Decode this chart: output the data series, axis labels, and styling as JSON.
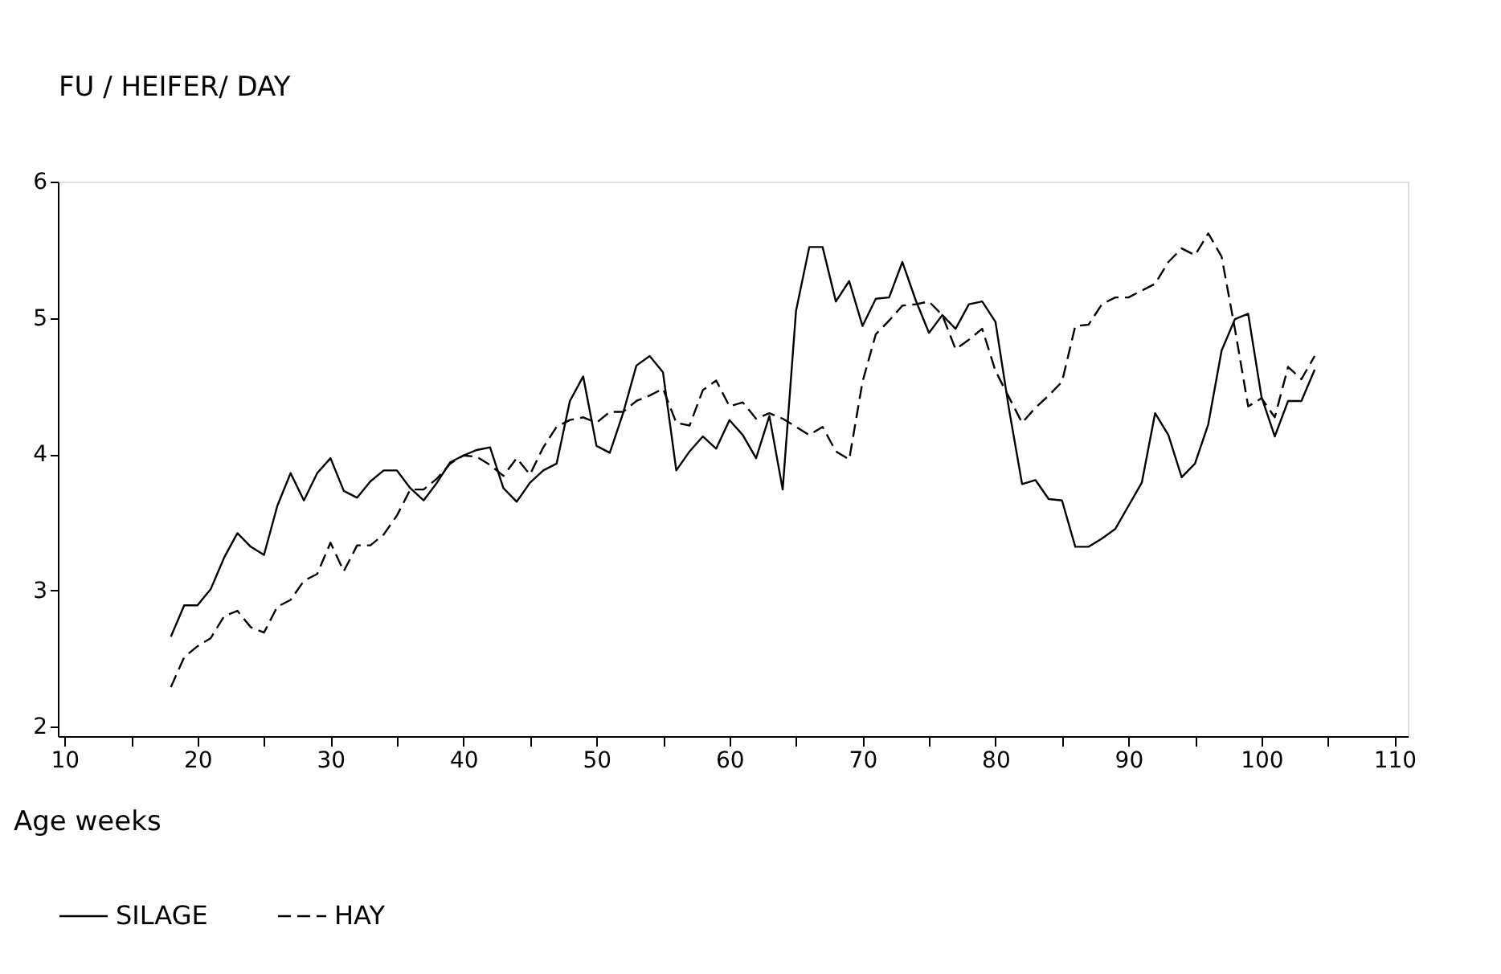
{
  "chart_data": {
    "type": "line",
    "ylabel": "FU / HEIFER/ DAY",
    "xlabel": "Age weeks",
    "x": [
      18,
      19,
      20,
      21,
      22,
      23,
      24,
      25,
      26,
      27,
      28,
      29,
      30,
      31,
      32,
      33,
      34,
      35,
      36,
      37,
      38,
      39,
      40,
      41,
      42,
      43,
      44,
      45,
      46,
      47,
      48,
      49,
      50,
      51,
      52,
      53,
      54,
      55,
      56,
      57,
      58,
      59,
      60,
      61,
      62,
      63,
      64,
      65,
      66,
      67,
      68,
      69,
      70,
      71,
      72,
      73,
      74,
      75,
      76,
      77,
      78,
      79,
      80,
      81,
      82,
      83,
      84,
      85,
      86,
      87,
      88,
      89,
      90,
      91,
      92,
      93,
      94,
      95,
      96,
      97,
      98,
      99,
      100,
      101,
      102,
      103,
      104
    ],
    "series": [
      {
        "name": "SILAGE",
        "color": "#000000",
        "line_style": "solid",
        "values": [
          2.66,
          2.89,
          2.89,
          3.01,
          3.24,
          3.42,
          3.32,
          3.26,
          3.62,
          3.86,
          3.66,
          3.86,
          3.97,
          3.73,
          3.68,
          3.8,
          3.88,
          3.88,
          3.75,
          3.66,
          3.79,
          3.94,
          3.99,
          4.03,
          4.05,
          3.75,
          3.65,
          3.79,
          3.88,
          3.93,
          4.39,
          4.57,
          4.06,
          4.01,
          4.3,
          4.65,
          4.72,
          4.6,
          3.88,
          4.02,
          4.13,
          4.04,
          4.25,
          4.14,
          3.97,
          4.28,
          3.74,
          5.05,
          5.52,
          5.52,
          5.12,
          5.27,
          4.94,
          5.14,
          5.15,
          5.41,
          5.13,
          4.89,
          5.02,
          4.92,
          5.1,
          5.12,
          4.97,
          4.34,
          3.78,
          3.81,
          3.67,
          3.66,
          3.32,
          3.32,
          3.38,
          3.45,
          3.62,
          3.79,
          4.3,
          4.14,
          3.83,
          3.93,
          4.22,
          4.76,
          4.99,
          5.03,
          4.42,
          4.13,
          4.39,
          4.39,
          4.62
        ]
      },
      {
        "name": "HAY",
        "color": "#000000",
        "line_style": "dashed",
        "values": [
          2.29,
          2.51,
          2.59,
          2.65,
          2.81,
          2.85,
          2.73,
          2.69,
          2.88,
          2.93,
          3.07,
          3.12,
          3.35,
          3.14,
          3.33,
          3.33,
          3.41,
          3.55,
          3.74,
          3.74,
          3.82,
          3.93,
          3.99,
          3.98,
          3.92,
          3.84,
          3.97,
          3.85,
          4.05,
          4.2,
          4.25,
          4.27,
          4.23,
          4.31,
          4.31,
          4.39,
          4.43,
          4.48,
          4.23,
          4.21,
          4.47,
          4.54,
          4.35,
          4.38,
          4.26,
          4.3,
          4.26,
          4.2,
          4.14,
          4.2,
          4.02,
          3.96,
          4.53,
          4.88,
          4.98,
          5.09,
          5.1,
          5.12,
          5.02,
          4.77,
          4.84,
          4.92,
          4.61,
          4.42,
          4.23,
          4.34,
          4.43,
          4.53,
          4.94,
          4.95,
          5.1,
          5.15,
          5.15,
          5.2,
          5.25,
          5.41,
          5.51,
          5.46,
          5.62,
          5.45,
          4.92,
          4.35,
          4.41,
          4.27,
          4.64,
          4.55,
          4.72
        ]
      }
    ],
    "xlim": [
      9.5,
      111
    ],
    "xticks": [
      10,
      {
        "value": 15,
        "label": null
      },
      20,
      {
        "value": 25,
        "label": null
      },
      30,
      {
        "value": 35,
        "label": null
      },
      40,
      {
        "value": 45,
        "label": null
      },
      50,
      {
        "value": 55,
        "label": null
      },
      60,
      {
        "value": 65,
        "label": null
      },
      70,
      {
        "value": 75,
        "label": null
      },
      80,
      {
        "value": 85,
        "label": null
      },
      90,
      {
        "value": 95,
        "label": null
      },
      100,
      {
        "value": 105,
        "label": null
      },
      110
    ],
    "ylim": [
      1.93,
      6
    ],
    "yticks": [
      2,
      3,
      4,
      5,
      6
    ],
    "grid": false,
    "legend": "bottom"
  }
}
